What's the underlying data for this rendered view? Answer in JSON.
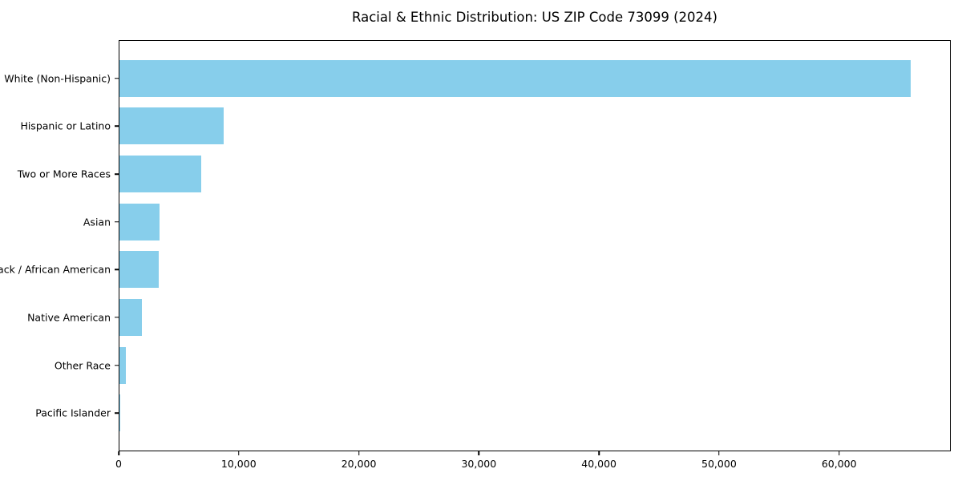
{
  "chart_data": {
    "type": "bar",
    "orientation": "horizontal",
    "title": "Racial & Ethnic Distribution: US ZIP Code 73099 (2024)",
    "categories": [
      "White (Non-Hispanic)",
      "Hispanic or Latino",
      "Two or More Races",
      "Asian",
      "Black / African American",
      "Native American",
      "Other Race",
      "Pacific Islander"
    ],
    "values": [
      66000,
      8700,
      6820,
      3340,
      3280,
      1870,
      540,
      30
    ],
    "xlabel": "",
    "ylabel": "",
    "xlim": [
      0,
      69300
    ],
    "xticks": [
      0,
      10000,
      20000,
      30000,
      40000,
      50000,
      60000
    ],
    "xtick_labels": [
      "0",
      "10,000",
      "20,000",
      "30,000",
      "40,000",
      "50,000",
      "60,000"
    ],
    "bar_color": "#87CEEB",
    "frame_color": "#000000",
    "background_color": "#ffffff",
    "grid": false,
    "legend": null
  }
}
